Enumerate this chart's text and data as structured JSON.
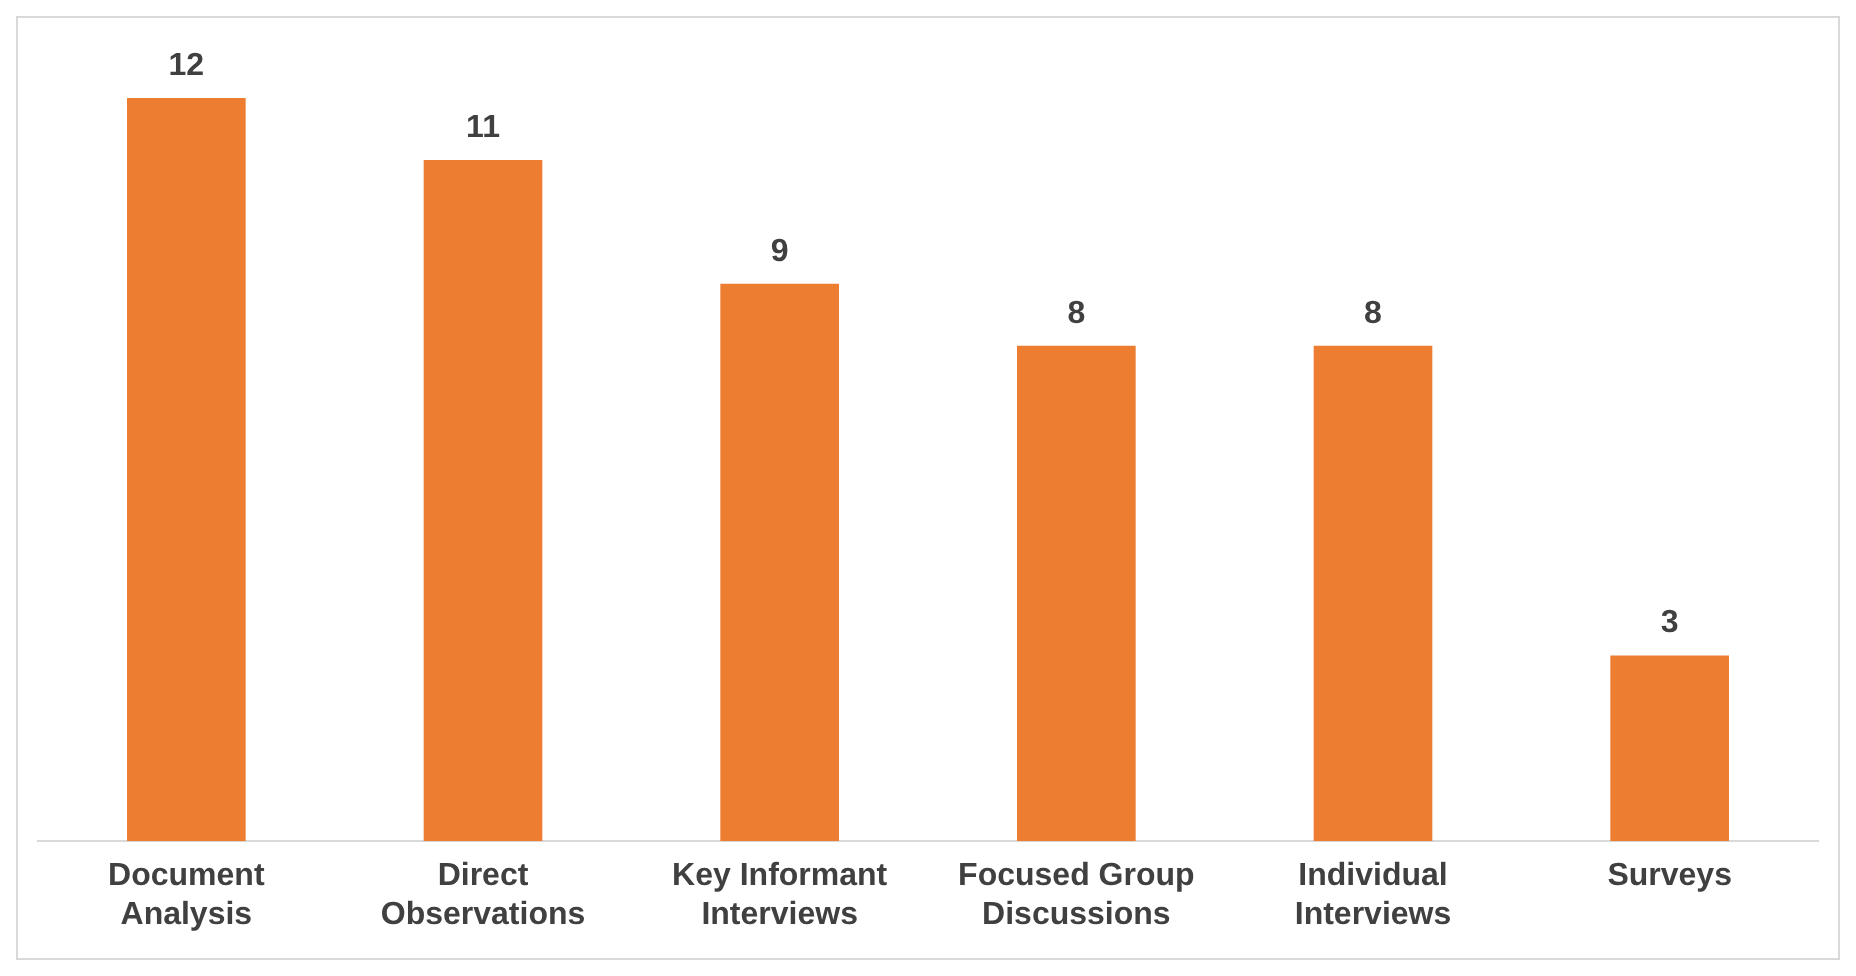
{
  "chart_data": {
    "type": "bar",
    "categories": [
      "Document Analysis",
      "Direct Observations",
      "Key Informant Interviews",
      "Focused Group Discussions",
      "Individual Interviews",
      "Surveys"
    ],
    "values": [
      12,
      11,
      9,
      8,
      8,
      3
    ],
    "color": "#ed7d31",
    "data_labels": true,
    "grid": false,
    "legend": false
  }
}
